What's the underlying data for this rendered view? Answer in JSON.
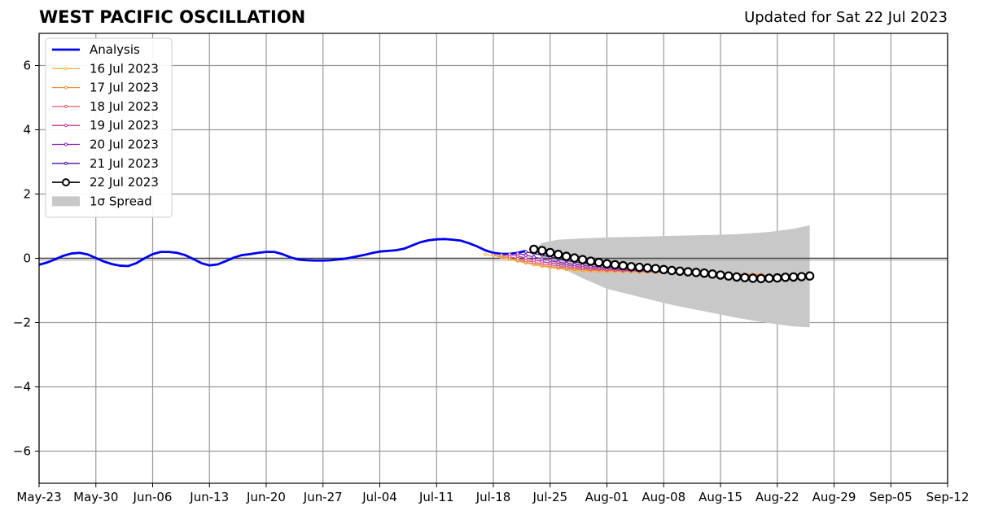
{
  "header": {
    "title": "WEST PACIFIC OSCILLATION",
    "subtitle": "Updated for Sat 22 Jul 2023"
  },
  "chart_data": {
    "type": "line",
    "title": "WEST PACIFIC OSCILLATION",
    "subtitle": "Updated for Sat 22 Jul 2023",
    "xlabel": "",
    "ylabel": "",
    "x_start_date": "2023-05-23",
    "xlim": [
      "2023-05-23",
      "2023-09-12"
    ],
    "ylim": [
      -7,
      7
    ],
    "x_ticks": [
      "May-23",
      "May-30",
      "Jun-06",
      "Jun-13",
      "Jun-20",
      "Jun-27",
      "Jul-04",
      "Jul-11",
      "Jul-18",
      "Jul-25",
      "Aug-01",
      "Aug-08",
      "Aug-15",
      "Aug-22",
      "Aug-29",
      "Sep-05",
      "Sep-12"
    ],
    "y_ticks": [
      -6,
      -4,
      -2,
      0,
      2,
      4,
      6
    ],
    "y_tick_labels": [
      "−6",
      "−4",
      "−2",
      "0",
      "2",
      "4",
      "6"
    ],
    "grid": true,
    "legend_position": "top-left",
    "legend": [
      "Analysis",
      "16 Jul 2023",
      "17 Jul 2023",
      "18 Jul 2023",
      "19 Jul 2023",
      "20 Jul 2023",
      "21 Jul 2023",
      "22 Jul 2023",
      "1σ Spread"
    ],
    "analysis": {
      "name": "Analysis",
      "color": "#0000ee",
      "x": [
        "2023-05-23",
        "2023-05-24",
        "2023-05-25",
        "2023-05-26",
        "2023-05-27",
        "2023-05-28",
        "2023-05-29",
        "2023-05-30",
        "2023-05-31",
        "2023-06-01",
        "2023-06-02",
        "2023-06-03",
        "2023-06-04",
        "2023-06-05",
        "2023-06-06",
        "2023-06-07",
        "2023-06-08",
        "2023-06-09",
        "2023-06-10",
        "2023-06-11",
        "2023-06-12",
        "2023-06-13",
        "2023-06-14",
        "2023-06-15",
        "2023-06-16",
        "2023-06-17",
        "2023-06-18",
        "2023-06-19",
        "2023-06-20",
        "2023-06-21",
        "2023-06-22",
        "2023-06-23",
        "2023-06-24",
        "2023-06-25",
        "2023-06-26",
        "2023-06-27",
        "2023-06-28",
        "2023-06-29",
        "2023-06-30",
        "2023-07-01",
        "2023-07-02",
        "2023-07-03",
        "2023-07-04",
        "2023-07-05",
        "2023-07-06",
        "2023-07-07",
        "2023-07-08",
        "2023-07-09",
        "2023-07-10",
        "2023-07-11",
        "2023-07-12",
        "2023-07-13",
        "2023-07-14",
        "2023-07-15",
        "2023-07-16",
        "2023-07-17",
        "2023-07-18",
        "2023-07-19",
        "2023-07-20",
        "2023-07-21",
        "2023-07-22"
      ],
      "y": [
        -0.2,
        -0.13,
        -0.03,
        0.08,
        0.15,
        0.17,
        0.12,
        0.01,
        -0.1,
        -0.18,
        -0.23,
        -0.24,
        -0.15,
        0,
        0.13,
        0.2,
        0.2,
        0.17,
        0.1,
        -0.02,
        -0.15,
        -0.22,
        -0.19,
        -0.09,
        0.02,
        0.1,
        0.13,
        0.17,
        0.2,
        0.2,
        0.13,
        0.03,
        -0.04,
        -0.06,
        -0.07,
        -0.07,
        -0.06,
        -0.03,
        0,
        0.05,
        0.1,
        0.16,
        0.21,
        0.23,
        0.25,
        0.3,
        0.4,
        0.5,
        0.56,
        0.59,
        0.6,
        0.58,
        0.55,
        0.47,
        0.37,
        0.25,
        0.17,
        0.14,
        0.14,
        0.17,
        0.23
      ]
    },
    "series": [
      {
        "name": "16 Jul 2023",
        "color": "#f7b845",
        "start": "2023-07-17",
        "y": [
          0.12,
          0.09,
          0.03,
          -0.03,
          -0.09,
          -0.15,
          -0.2,
          -0.25,
          -0.29,
          -0.32,
          -0.35,
          -0.37,
          -0.39,
          -0.4,
          -0.41,
          -0.41,
          -0.42,
          -0.42,
          -0.42,
          -0.43,
          -0.43,
          -0.44,
          -0.44,
          -0.45,
          -0.45,
          -0.46,
          -0.47,
          -0.48,
          -0.48,
          -0.49,
          -0.49,
          -0.5,
          -0.5,
          -0.5
        ]
      },
      {
        "name": "17 Jul 2023",
        "color": "#f08a3e",
        "start": "2023-07-18",
        "y": [
          0.1,
          0.06,
          0,
          -0.06,
          -0.12,
          -0.17,
          -0.22,
          -0.26,
          -0.29,
          -0.32,
          -0.34,
          -0.36,
          -0.37,
          -0.38,
          -0.39,
          -0.39,
          -0.4,
          -0.4,
          -0.41,
          -0.41,
          -0.42,
          -0.43,
          -0.44,
          -0.45,
          -0.46,
          -0.47,
          -0.48,
          -0.49,
          -0.5,
          -0.5,
          -0.5,
          -0.5,
          -0.5,
          -0.5
        ]
      },
      {
        "name": "18 Jul 2023",
        "color": "#e05a6a",
        "start": "2023-07-19",
        "y": [
          0.1,
          0.05,
          -0.01,
          -0.07,
          -0.12,
          -0.17,
          -0.21,
          -0.25,
          -0.28,
          -0.3,
          -0.32,
          -0.34,
          -0.35,
          -0.36,
          -0.37,
          -0.38,
          -0.39,
          -0.4,
          -0.41,
          -0.42,
          -0.43,
          -0.44,
          -0.45,
          -0.46,
          -0.47,
          -0.48,
          -0.49,
          -0.5,
          -0.51,
          -0.52,
          -0.52,
          -0.53,
          -0.53,
          -0.53
        ]
      },
      {
        "name": "19 Jul 2023",
        "color": "#c0379a",
        "start": "2023-07-20",
        "y": [
          0.12,
          0.07,
          0.01,
          -0.05,
          -0.1,
          -0.15,
          -0.19,
          -0.22,
          -0.25,
          -0.28,
          -0.3,
          -0.32,
          -0.34,
          -0.35,
          -0.37,
          -0.38,
          -0.39,
          -0.41,
          -0.42,
          -0.43,
          -0.45,
          -0.46,
          -0.47,
          -0.49,
          -0.5,
          -0.51,
          -0.52,
          -0.53,
          -0.54,
          -0.55,
          -0.55,
          -0.56,
          -0.56,
          -0.56
        ]
      },
      {
        "name": "20 Jul 2023",
        "color": "#8a1fb0",
        "start": "2023-07-21",
        "y": [
          0.15,
          0.1,
          0.04,
          -0.02,
          -0.07,
          -0.12,
          -0.16,
          -0.19,
          -0.22,
          -0.25,
          -0.27,
          -0.29,
          -0.31,
          -0.33,
          -0.35,
          -0.37,
          -0.38,
          -0.4,
          -0.42,
          -0.43,
          -0.45,
          -0.47,
          -0.48,
          -0.5,
          -0.51,
          -0.53,
          -0.54,
          -0.55,
          -0.56,
          -0.57,
          -0.57,
          -0.58,
          -0.58,
          -0.58
        ]
      },
      {
        "name": "21 Jul 2023",
        "color": "#4b0c94",
        "start": "2023-07-22",
        "y": [
          0.2,
          0.15,
          0.1,
          0.04,
          -0.02,
          -0.07,
          -0.11,
          -0.15,
          -0.18,
          -0.21,
          -0.24,
          -0.26,
          -0.28,
          -0.31,
          -0.33,
          -0.35,
          -0.37,
          -0.39,
          -0.41,
          -0.43,
          -0.45,
          -0.47,
          -0.49,
          -0.5,
          -0.52,
          -0.54,
          -0.55,
          -0.56,
          -0.57,
          -0.58,
          -0.58,
          -0.59,
          -0.59,
          -0.59
        ]
      },
      {
        "name": "22 Jul 2023",
        "color": "#000000",
        "start": "2023-07-23",
        "y": [
          0.28,
          0.24,
          0.18,
          0.12,
          0.06,
          0.01,
          -0.04,
          -0.09,
          -0.13,
          -0.17,
          -0.2,
          -0.23,
          -0.26,
          -0.28,
          -0.3,
          -0.32,
          -0.35,
          -0.38,
          -0.4,
          -0.42,
          -0.44,
          -0.46,
          -0.49,
          -0.52,
          -0.55,
          -0.58,
          -0.6,
          -0.62,
          -0.63,
          -0.62,
          -0.61,
          -0.59,
          -0.58,
          -0.57,
          -0.55
        ]
      }
    ],
    "spread": {
      "name": "1σ Spread",
      "color": "#c8c8c8",
      "x": [
        "2023-07-23",
        "2023-07-24",
        "2023-07-26",
        "2023-07-29",
        "2023-08-01",
        "2023-08-05",
        "2023-08-09",
        "2023-08-13",
        "2023-08-17",
        "2023-08-21",
        "2023-08-24",
        "2023-08-26"
      ],
      "upper": [
        0.28,
        0.48,
        0.58,
        0.62,
        0.65,
        0.67,
        0.7,
        0.72,
        0.75,
        0.82,
        0.92,
        1.03
      ],
      "lower": [
        0.28,
        0.05,
        -0.25,
        -0.62,
        -0.95,
        -1.2,
        -1.45,
        -1.65,
        -1.85,
        -2.02,
        -2.12,
        -2.15
      ]
    }
  }
}
